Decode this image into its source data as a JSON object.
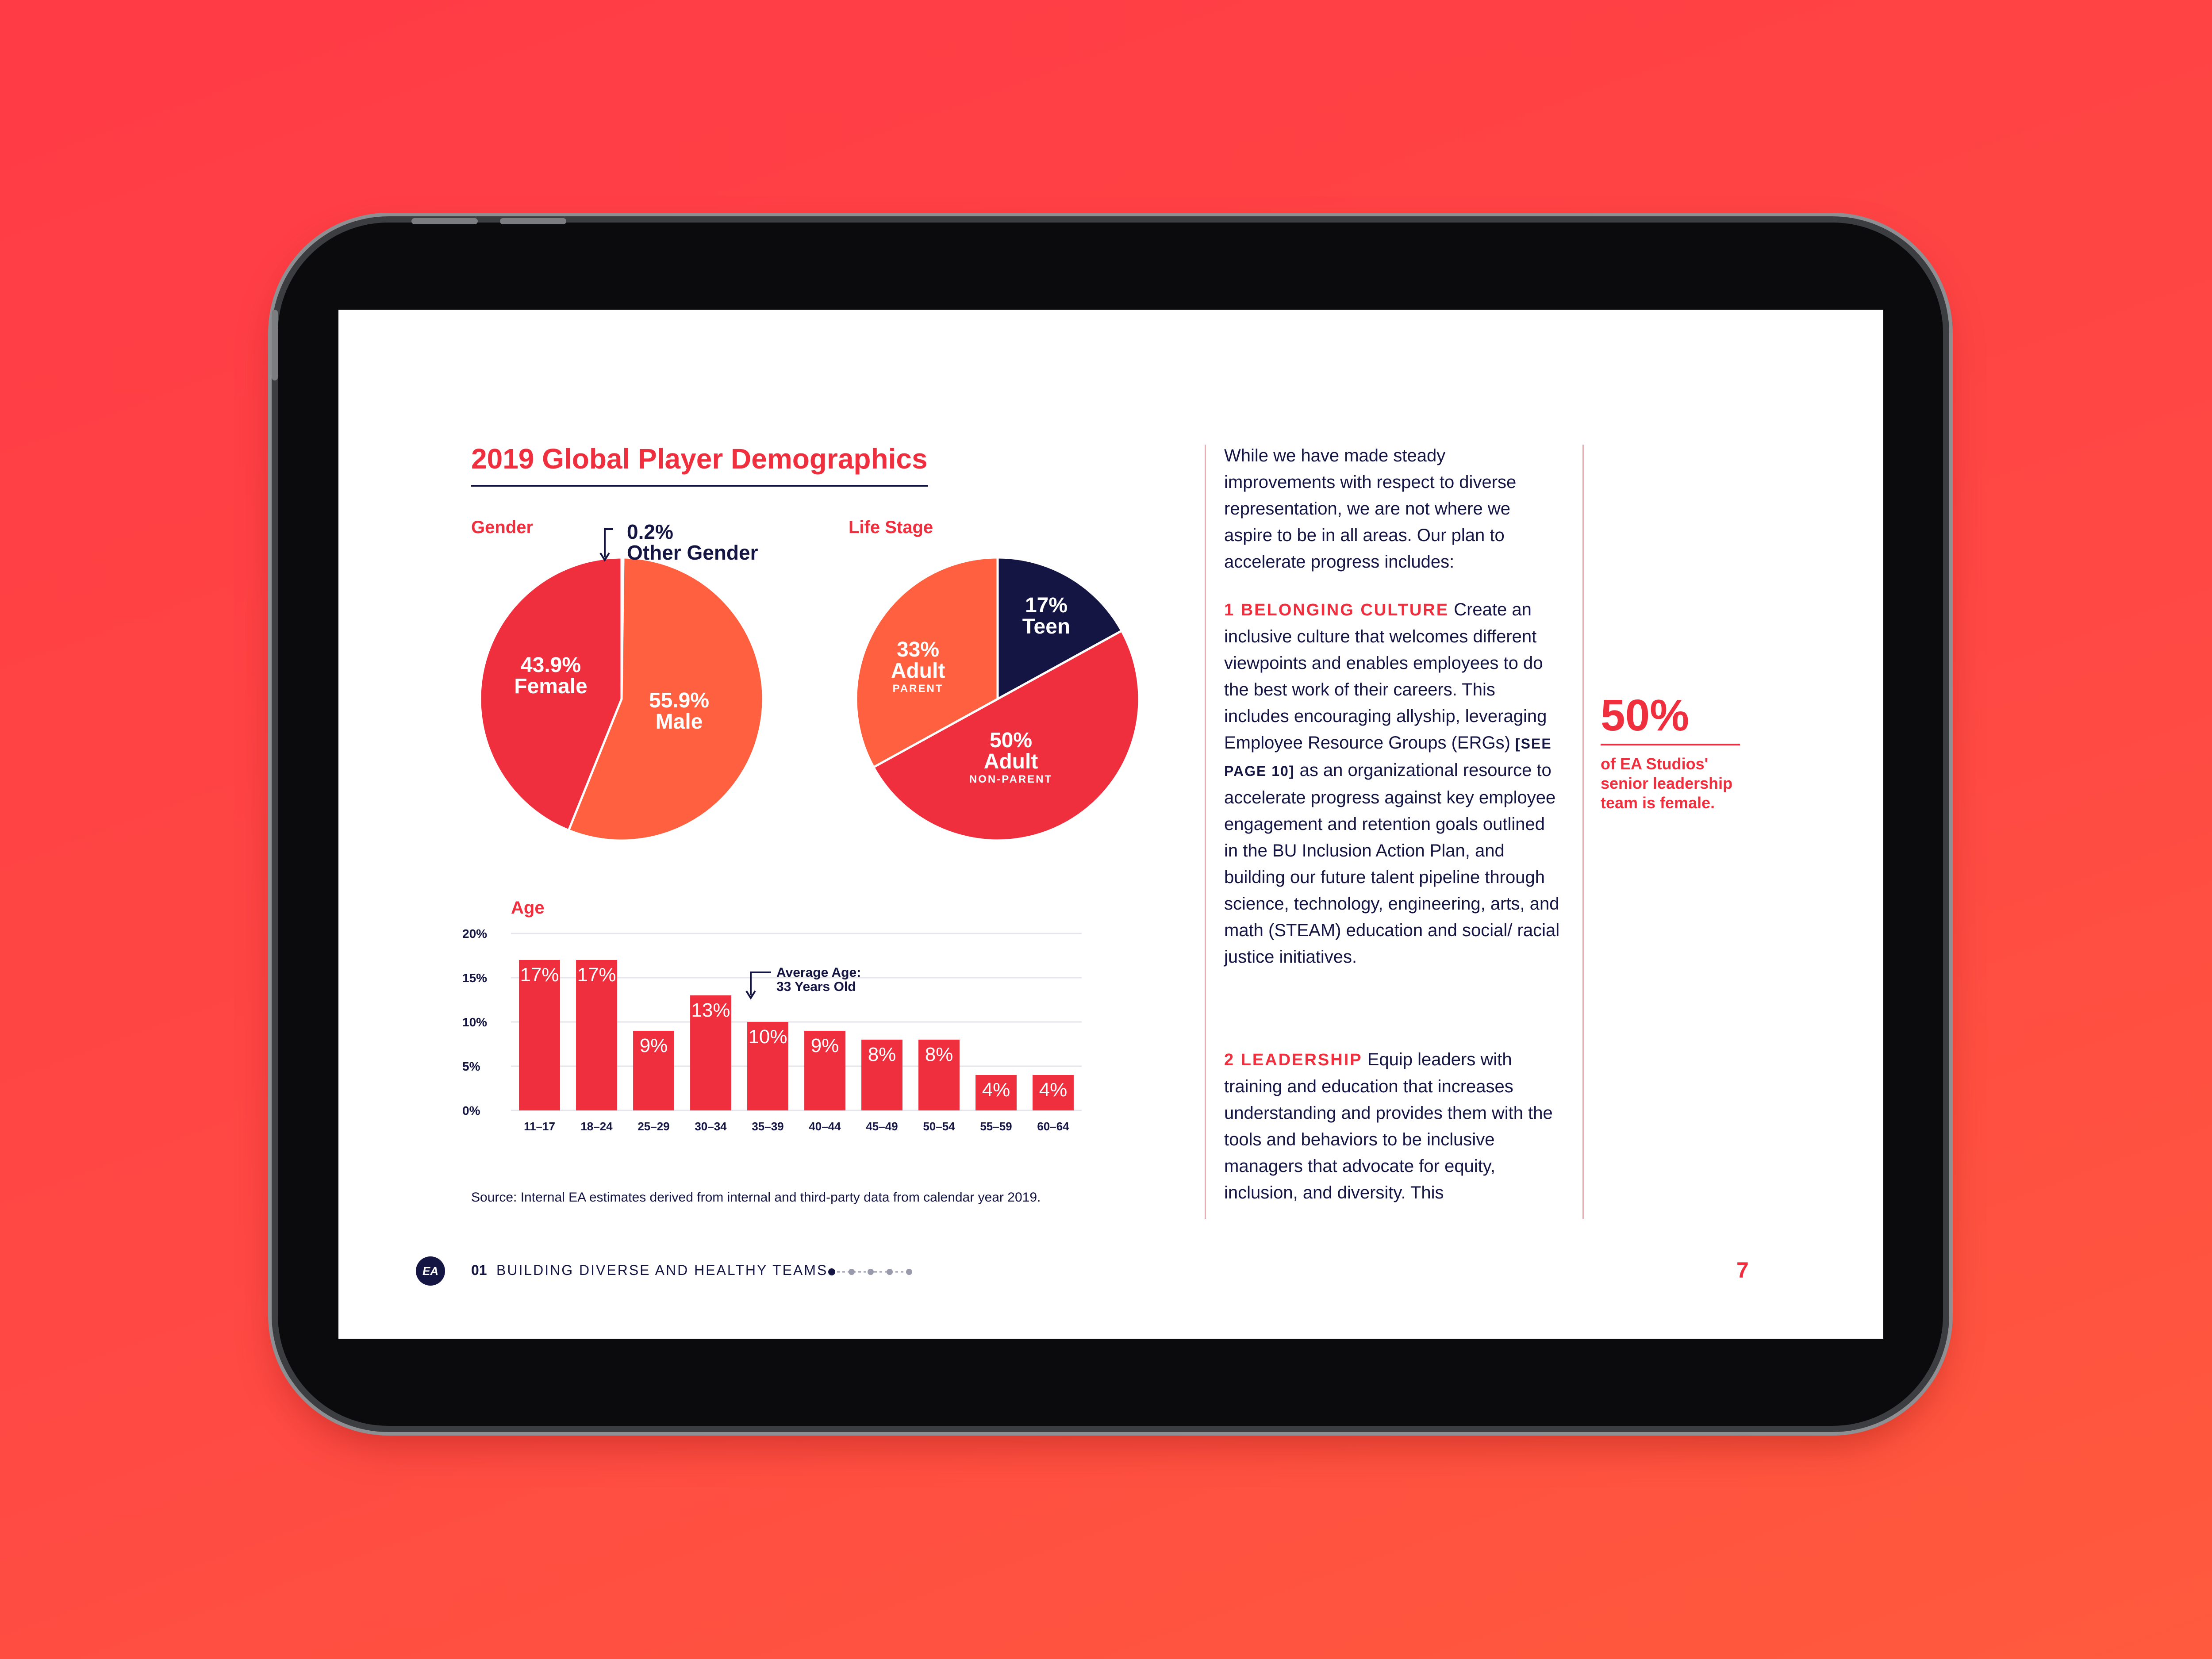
{
  "report": {
    "title": "2019 Global Player Demographics",
    "source": "Source: Internal EA estimates derived from internal and third-party data from calendar year 2019."
  },
  "gender": {
    "label": "Gender",
    "other_value": "0.2%",
    "other_name": "Other Gender",
    "female_value": "43.9%",
    "female_name": "Female",
    "male_value": "55.9%",
    "male_name": "Male"
  },
  "life_stage": {
    "label": "Life Stage",
    "teen_value": "17%",
    "teen_name": "Teen",
    "parent_value": "33%",
    "parent_name": "Adult",
    "parent_sub": "PARENT",
    "nonparent_value": "50%",
    "nonparent_name": "Adult",
    "nonparent_sub": "NON-PARENT"
  },
  "age": {
    "label": "Age",
    "annotation_line1": "Average Age:",
    "annotation_line2": "33 Years Old"
  },
  "body": {
    "intro": "While we have made steady improvements with respect to diverse representation, we are not where we aspire to be in all areas. Our plan to accelerate progress includes:",
    "item1_heading": "1 BELONGING CULTURE",
    "item1_text_a": " Create an inclusive culture that welcomes different viewpoints and enables employees to do the best work of their careers. This includes encouraging allyship, leveraging Employee Resource Groups (ERGs) ",
    "item1_ref": "[SEE PAGE 10]",
    "item1_text_b": " as an organizational resource to accelerate progress against key employee engagement and retention goals outlined in the BU Inclusion Action Plan, and building our future talent pipeline through science, technology, engineering, arts, and math (STEAM) education and social/ racial justice initiatives.",
    "item2_heading": "2 LEADERSHIP",
    "item2_text": " Equip leaders with training and education that increases understanding and provides them with the tools and behaviors to be inclusive managers that advocate for equity, inclusion, and diversity. This"
  },
  "callout": {
    "value": "50%",
    "text": "of EA Studios' senior leadership team is female."
  },
  "footer": {
    "logo": "EA",
    "section_number": "01",
    "section_title": "BUILDING DIVERSE AND HEALTHY TEAMS",
    "page_number": "7"
  },
  "colors": {
    "red": "#ef2e3e",
    "orange": "#ff6040",
    "navy": "#151544"
  },
  "chart_data": [
    {
      "type": "pie",
      "title": "Gender",
      "slices": [
        {
          "name": "Other Gender",
          "value": 0.2
        },
        {
          "name": "Male",
          "value": 55.9
        },
        {
          "name": "Female",
          "value": 43.9
        }
      ]
    },
    {
      "type": "pie",
      "title": "Life Stage",
      "slices": [
        {
          "name": "Teen",
          "value": 17
        },
        {
          "name": "Adult NON-PARENT",
          "value": 50
        },
        {
          "name": "Adult PARENT",
          "value": 33
        }
      ]
    },
    {
      "type": "bar",
      "title": "Age",
      "categories": [
        "11–17",
        "18–24",
        "25–29",
        "30–34",
        "35–39",
        "40–44",
        "45–49",
        "50–54",
        "55–59",
        "60–64"
      ],
      "values": [
        17,
        17,
        9,
        13,
        10,
        9,
        8,
        8,
        4,
        4
      ],
      "value_labels": [
        "17%",
        "17%",
        "9%",
        "13%",
        "10%",
        "9%",
        "8%",
        "8%",
        "4%",
        "4%"
      ],
      "ylim": [
        0,
        20
      ],
      "yticks": [
        "0%",
        "5%",
        "10%",
        "15%",
        "20%"
      ],
      "grid": true
    }
  ]
}
